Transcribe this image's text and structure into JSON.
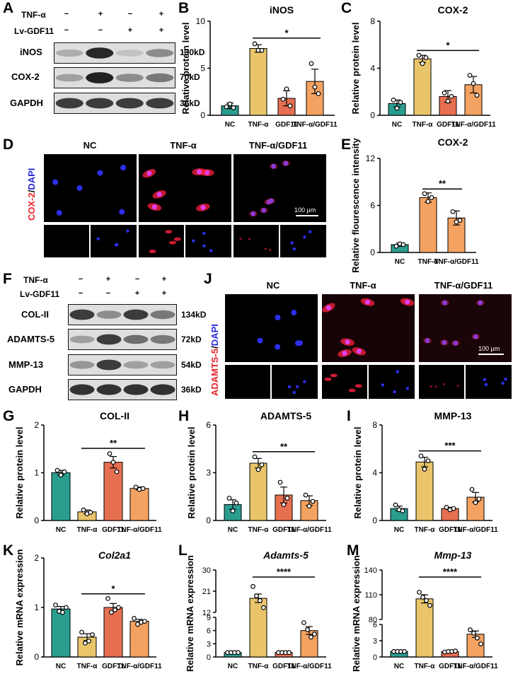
{
  "panel_letters": {
    "A": "A",
    "B": "B",
    "C": "C",
    "D": "D",
    "E": "E",
    "F": "F",
    "G": "G",
    "H": "H",
    "I": "I",
    "J": "J",
    "K": "K",
    "L": "L",
    "M": "M"
  },
  "western_A": {
    "row_labels": [
      "TNF-α",
      "Lv-GDF11"
    ],
    "marks": [
      [
        "−",
        "+",
        "−",
        "+"
      ],
      [
        "−",
        "−",
        "+",
        "+"
      ]
    ],
    "bands": [
      {
        "name": "iNOS",
        "size": "130kD",
        "intensity": [
          0.28,
          0.95,
          0.18,
          0.45
        ]
      },
      {
        "name": "COX-2",
        "size": "70kD",
        "intensity": [
          0.35,
          0.98,
          0.45,
          0.55
        ]
      },
      {
        "name": "GAPDH",
        "size": "36kD",
        "intensity": [
          0.85,
          0.85,
          0.85,
          0.85
        ]
      }
    ]
  },
  "western_F": {
    "row_labels": [
      "TNF-α",
      "Lv-GDF11"
    ],
    "marks": [
      [
        "−",
        "+",
        "−",
        "+"
      ],
      [
        "−",
        "−",
        "+",
        "+"
      ]
    ],
    "bands": [
      {
        "name": "COL-II",
        "size": "134kD",
        "intensity": [
          0.85,
          0.45,
          0.85,
          0.55
        ]
      },
      {
        "name": "ADAMTS-5",
        "size": "72kD",
        "intensity": [
          0.35,
          0.85,
          0.6,
          0.55
        ]
      },
      {
        "name": "MMP-13",
        "size": "54kD",
        "intensity": [
          0.4,
          0.85,
          0.35,
          0.35
        ]
      },
      {
        "name": "GAPDH",
        "size": "36kD",
        "intensity": [
          0.9,
          0.9,
          0.9,
          0.9
        ]
      }
    ]
  },
  "if_D": {
    "stain_red": "COX-2",
    "stain_sep": "/",
    "stain_blue": "DAPI",
    "conditions": [
      "NC",
      "TNF-α",
      "TNF-α/GDF11"
    ],
    "scale": "100 μm"
  },
  "if_J": {
    "stain_red": "ADAMTS-5",
    "stain_sep": "/",
    "stain_blue": "DAPI",
    "conditions": [
      "NC",
      "TNF-α",
      "TNF-α/GDF11"
    ],
    "scale": "100 μm"
  },
  "colors": {
    "NC": "#2a9d8f",
    "TNF": "#e9c46a",
    "GDF11": "#e76f51",
    "TNFGDF11": "#f4a261",
    "red_stain": "#e8232a",
    "blue_stain": "#2a2ad8"
  },
  "chart_data": [
    {
      "id": "B",
      "type": "bar",
      "title": "iNOS",
      "title_italic": false,
      "ylabel": "Relative protein level",
      "ylim": [
        0,
        10
      ],
      "yticks": [
        0,
        5,
        10
      ],
      "categories": [
        "NC",
        "TNF-α",
        "GDF11",
        "TNF-α/GDF11"
      ],
      "values": [
        1.0,
        7.1,
        1.8,
        3.6
      ],
      "errors": [
        0.3,
        0.4,
        0.8,
        1.3
      ],
      "points": [
        [
          0.9,
          1.2,
          0.8
        ],
        [
          7.6,
          6.9,
          6.9
        ],
        [
          1.7,
          2.8,
          1.0
        ],
        [
          5.5,
          3.0,
          2.3
        ]
      ],
      "significance": {
        "label": "*",
        "from": 1,
        "to": 3
      }
    },
    {
      "id": "C",
      "type": "bar",
      "title": "COX-2",
      "title_italic": false,
      "ylabel": "Relative protein level",
      "ylim": [
        0,
        8
      ],
      "yticks": [
        0,
        4,
        8
      ],
      "categories": [
        "NC",
        "TNF-α",
        "GDF11",
        "TNF-α/GDF11"
      ],
      "values": [
        1.0,
        4.8,
        1.6,
        2.6
      ],
      "errors": [
        0.3,
        0.3,
        0.5,
        0.7
      ],
      "points": [
        [
          1.3,
          0.6,
          1.1
        ],
        [
          5.1,
          4.4,
          4.9
        ],
        [
          1.9,
          1.2,
          1.6
        ],
        [
          3.4,
          2.7,
          1.7
        ]
      ],
      "significance": {
        "label": "*",
        "from": 1,
        "to": 3
      }
    },
    {
      "id": "E",
      "type": "bar",
      "title": "COX-2",
      "title_italic": false,
      "ylabel": "Relative flourescence intensity",
      "ylim": [
        0,
        12
      ],
      "yticks": [
        0,
        6,
        12
      ],
      "categories": [
        "NC",
        "TNF-α",
        "TNF-α/GDF11"
      ],
      "values": [
        1.0,
        7.0,
        4.4
      ],
      "errors": [
        0.2,
        0.6,
        0.9
      ],
      "points": [
        [
          0.8,
          1.1,
          1.0
        ],
        [
          7.5,
          6.5,
          7.0
        ],
        [
          5.2,
          3.9,
          4.1
        ]
      ],
      "significance": {
        "label": "**",
        "from": 1,
        "to": 2
      }
    },
    {
      "id": "G",
      "type": "bar",
      "title": "COL-II",
      "title_italic": false,
      "ylabel": "Relative protein level",
      "ylim": [
        0,
        2
      ],
      "yticks": [
        0,
        1,
        2
      ],
      "categories": [
        "NC",
        "TNF-α",
        "GDF11",
        "TNF-α/GDF11"
      ],
      "values": [
        1.0,
        0.18,
        1.22,
        0.67
      ],
      "errors": [
        0.05,
        0.04,
        0.12,
        0.03
      ],
      "points": [
        [
          1.05,
          0.95,
          1.02
        ],
        [
          0.22,
          0.14,
          0.17
        ],
        [
          1.4,
          1.22,
          1.02
        ],
        [
          0.7,
          0.65,
          0.67
        ]
      ],
      "significance": {
        "label": "**",
        "from": 1,
        "to": 3
      }
    },
    {
      "id": "H",
      "type": "bar",
      "title": "ADAMTS-5",
      "title_italic": false,
      "ylabel": "Relative protein level",
      "ylim": [
        0,
        6
      ],
      "yticks": [
        0,
        3,
        6
      ],
      "categories": [
        "NC",
        "TNF-α",
        "GDF11",
        "TNF-α/GDF11"
      ],
      "values": [
        1.0,
        3.6,
        1.6,
        1.25
      ],
      "errors": [
        0.3,
        0.3,
        0.5,
        0.3
      ],
      "points": [
        [
          1.4,
          0.6,
          1.1
        ],
        [
          4.0,
          3.2,
          3.5
        ],
        [
          2.4,
          1.0,
          1.4
        ],
        [
          1.6,
          0.9,
          1.2
        ]
      ],
      "significance": {
        "label": "**",
        "from": 1,
        "to": 3
      }
    },
    {
      "id": "I",
      "type": "bar",
      "title": "MMP-13",
      "title_italic": false,
      "ylabel": "Relative protein level",
      "ylim": [
        0,
        8
      ],
      "yticks": [
        0,
        4,
        8
      ],
      "categories": [
        "NC",
        "TNF-α",
        "GDF11",
        "TNF-α/GDF11"
      ],
      "values": [
        1.0,
        4.9,
        1.0,
        1.95
      ],
      "errors": [
        0.2,
        0.4,
        0.1,
        0.4
      ],
      "points": [
        [
          1.3,
          0.9,
          0.8
        ],
        [
          5.4,
          4.3,
          5.0
        ],
        [
          1.1,
          0.9,
          1.0
        ],
        [
          2.6,
          1.5,
          1.8
        ]
      ],
      "significance": {
        "label": "***",
        "from": 1,
        "to": 3
      }
    },
    {
      "id": "K",
      "type": "bar",
      "title": "Col2a1",
      "title_italic": true,
      "ylabel": "Relative mRNA expression",
      "ylim": [
        0,
        2
      ],
      "yticks": [
        0,
        1,
        2
      ],
      "categories": [
        "NC",
        "TNF-α",
        "GDF11",
        "TNF-α/GDF11"
      ],
      "values": [
        0.97,
        0.4,
        1.0,
        0.72
      ],
      "errors": [
        0.05,
        0.07,
        0.08,
        0.04
      ],
      "points": [
        [
          1.05,
          0.92,
          0.9,
          1.0
        ],
        [
          0.5,
          0.28,
          0.32,
          0.45
        ],
        [
          1.18,
          0.9,
          0.95,
          1.0
        ],
        [
          0.78,
          0.66,
          0.7,
          0.72
        ]
      ],
      "significance": {
        "label": "*",
        "from": 1,
        "to": 3
      }
    },
    {
      "id": "L",
      "type": "bar",
      "title": "Adamts-5",
      "title_italic": true,
      "ylabel": "Relative mRNA expression",
      "y_broken": true,
      "ylim_lower": [
        0,
        9
      ],
      "yticks_lower": [
        0,
        3,
        6,
        9
      ],
      "ylim_upper": [
        12,
        30
      ],
      "yticks_upper": [
        12,
        21,
        30
      ],
      "categories": [
        "NC",
        "TNF-α",
        "GDF11",
        "TNF-α/GDF11"
      ],
      "values": [
        1.0,
        18.0,
        1.0,
        6.0
      ],
      "errors": [
        0.05,
        1.8,
        0.05,
        0.9
      ],
      "points": [
        [
          1.0,
          1.0,
          1.0,
          1.0
        ],
        [
          23.0,
          19.0,
          17.0,
          14.0
        ],
        [
          1.0,
          1.0,
          1.0,
          1.0
        ],
        [
          7.8,
          6.2,
          4.5,
          5.2
        ]
      ],
      "significance": {
        "label": "****",
        "from": 1,
        "to": 3
      }
    },
    {
      "id": "M",
      "type": "bar",
      "title": "Mmp-13",
      "title_italic": true,
      "ylabel": "Relative mRNA expression",
      "y_broken": true,
      "ylim_lower": [
        0,
        6
      ],
      "yticks_lower": [
        0,
        3,
        6
      ],
      "ylim_upper": [
        80,
        140
      ],
      "yticks_upper": [
        80,
        110,
        140
      ],
      "categories": [
        "NC",
        "TNF-α",
        "GDF11",
        "TNF-α/GDF11"
      ],
      "values": [
        1.0,
        105.0,
        1.0,
        4.2
      ],
      "errors": [
        0.05,
        5.0,
        0.1,
        0.6
      ],
      "points": [
        [
          1.0,
          1.0,
          1.0,
          1.0
        ],
        [
          113.0,
          107.0,
          103.0,
          97.0
        ],
        [
          0.9,
          1.0,
          1.0,
          1.1
        ],
        [
          5.0,
          4.4,
          3.5,
          2.4
        ]
      ],
      "significance": {
        "label": "****",
        "from": 1,
        "to": 3
      }
    }
  ]
}
